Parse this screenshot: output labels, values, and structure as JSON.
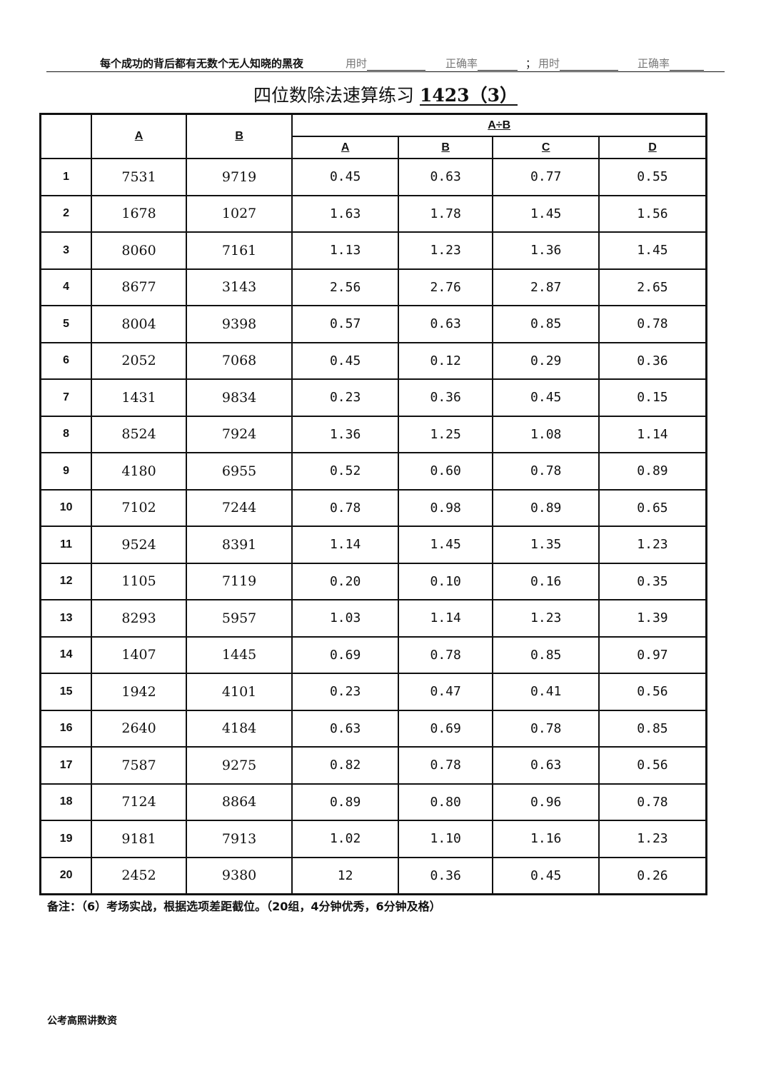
{
  "header": {
    "motto": "每个成功的背后都有无数个无人知晓的黑夜",
    "time_label_1": "用时",
    "accuracy_label_1": "正确率",
    "separator": "；",
    "time_label_2": "用时",
    "accuracy_label_2": "正确率"
  },
  "title": {
    "text": "四位数除法速算练习",
    "code": "1423（3）"
  },
  "table": {
    "col_a": "A",
    "col_b": "B",
    "group": "A÷B",
    "options": [
      "A",
      "B",
      "C",
      "D"
    ],
    "rows": [
      {
        "n": "1",
        "a": "7531",
        "b": "9719",
        "o": [
          "0.45",
          "0.63",
          "0.77",
          "0.55"
        ]
      },
      {
        "n": "2",
        "a": "1678",
        "b": "1027",
        "o": [
          "1.63",
          "1.78",
          "1.45",
          "1.56"
        ]
      },
      {
        "n": "3",
        "a": "8060",
        "b": "7161",
        "o": [
          "1.13",
          "1.23",
          "1.36",
          "1.45"
        ]
      },
      {
        "n": "4",
        "a": "8677",
        "b": "3143",
        "o": [
          "2.56",
          "2.76",
          "2.87",
          "2.65"
        ]
      },
      {
        "n": "5",
        "a": "8004",
        "b": "9398",
        "o": [
          "0.57",
          "0.63",
          "0.85",
          "0.78"
        ]
      },
      {
        "n": "6",
        "a": "2052",
        "b": "7068",
        "o": [
          "0.45",
          "0.12",
          "0.29",
          "0.36"
        ]
      },
      {
        "n": "7",
        "a": "1431",
        "b": "9834",
        "o": [
          "0.23",
          "0.36",
          "0.45",
          "0.15"
        ]
      },
      {
        "n": "8",
        "a": "8524",
        "b": "7924",
        "o": [
          "1.36",
          "1.25",
          "1.08",
          "1.14"
        ]
      },
      {
        "n": "9",
        "a": "4180",
        "b": "6955",
        "o": [
          "0.52",
          "0.60",
          "0.78",
          "0.89"
        ]
      },
      {
        "n": "10",
        "a": "7102",
        "b": "7244",
        "o": [
          "0.78",
          "0.98",
          "0.89",
          "0.65"
        ]
      },
      {
        "n": "11",
        "a": "9524",
        "b": "8391",
        "o": [
          "1.14",
          "1.45",
          "1.35",
          "1.23"
        ]
      },
      {
        "n": "12",
        "a": "1105",
        "b": "7119",
        "o": [
          "0.20",
          "0.10",
          "0.16",
          "0.35"
        ]
      },
      {
        "n": "13",
        "a": "8293",
        "b": "5957",
        "o": [
          "1.03",
          "1.14",
          "1.23",
          "1.39"
        ]
      },
      {
        "n": "14",
        "a": "1407",
        "b": "1445",
        "o": [
          "0.69",
          "0.78",
          "0.85",
          "0.97"
        ]
      },
      {
        "n": "15",
        "a": "1942",
        "b": "4101",
        "o": [
          "0.23",
          "0.47",
          "0.41",
          "0.56"
        ]
      },
      {
        "n": "16",
        "a": "2640",
        "b": "4184",
        "o": [
          "0.63",
          "0.69",
          "0.78",
          "0.85"
        ]
      },
      {
        "n": "17",
        "a": "7587",
        "b": "9275",
        "o": [
          "0.82",
          "0.78",
          "0.63",
          "0.56"
        ]
      },
      {
        "n": "18",
        "a": "7124",
        "b": "8864",
        "o": [
          "0.89",
          "0.80",
          "0.96",
          "0.78"
        ]
      },
      {
        "n": "19",
        "a": "9181",
        "b": "7913",
        "o": [
          "1.02",
          "1.10",
          "1.16",
          "1.23"
        ]
      },
      {
        "n": "20",
        "a": "2452",
        "b": "9380",
        "o": [
          "12",
          "0.36",
          "0.45",
          "0.26"
        ]
      }
    ]
  },
  "note": "备注：（6）考场实战，根据选项差距截位。（20组，4分钟优秀，6分钟及格）",
  "footer": "公考高照讲数资"
}
